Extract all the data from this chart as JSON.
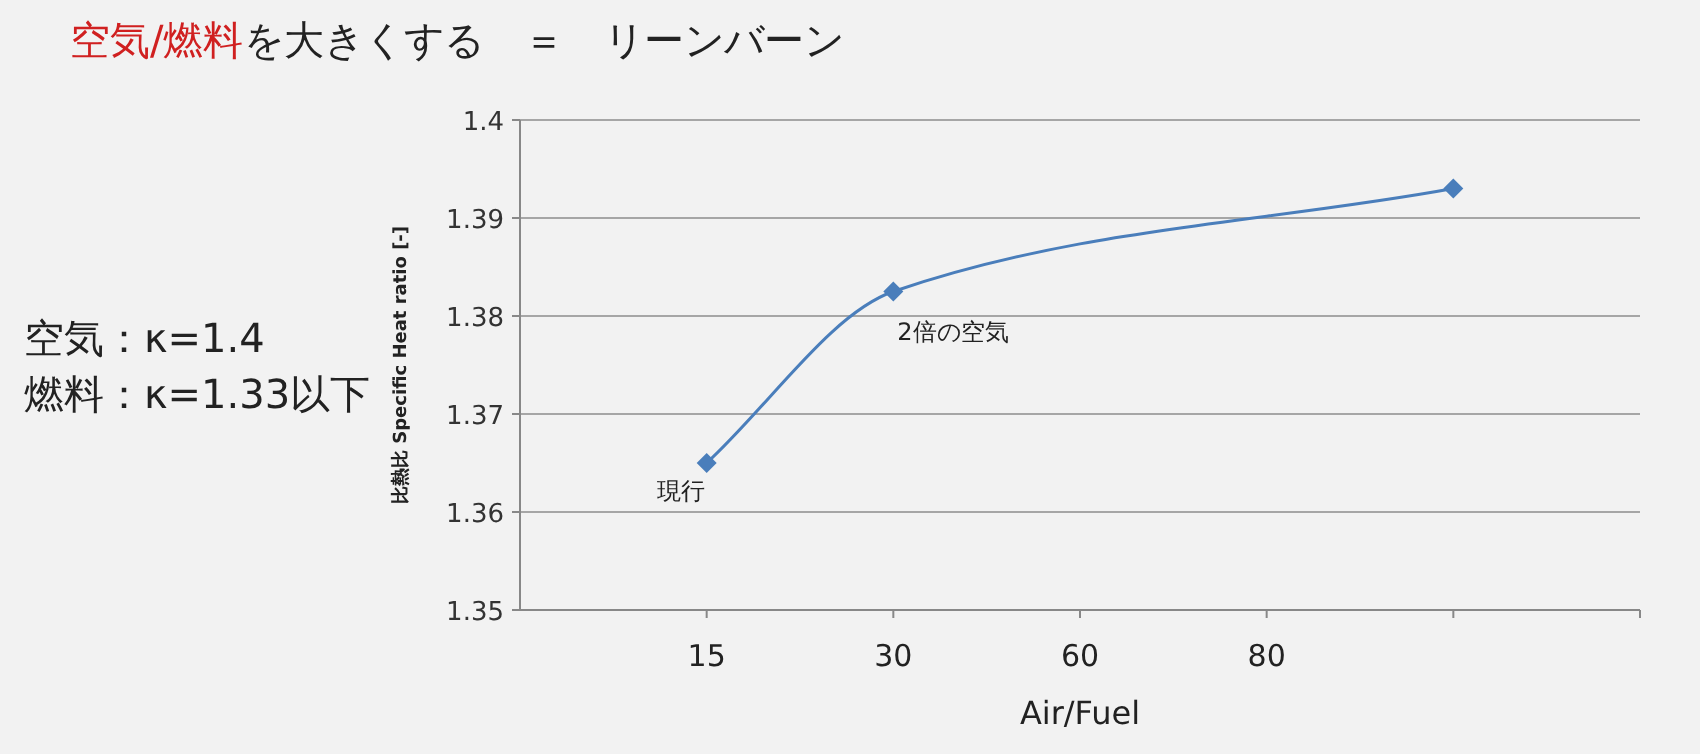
{
  "chart_data": {
    "type": "line",
    "title": "空気/燃料",
    "subtitle": "を大きくする　＝　リーンバーン",
    "xlabel": "Air/Fuel",
    "ylabel": "比熱比  Specific Heat ratio [-]",
    "categories": [
      "15",
      "30",
      "60",
      "80",
      null
    ],
    "series": [
      {
        "color": "#4a7ebb",
        "values": [
          1.365,
          1.3825,
          null,
          null,
          1.393
        ]
      }
    ],
    "ylim": [
      1.35,
      1.4
    ],
    "yticks": [
      1.35,
      1.36,
      1.37,
      1.38,
      1.39,
      1.4
    ],
    "grid": "y",
    "marker": "diamond",
    "line_style": "solid",
    "annotations": [
      {
        "text": "現行",
        "x": "15",
        "y": 1.365
      },
      {
        "text": "2倍の空気",
        "x": "30",
        "y": 1.3825
      },
      "空気：κ=1.4",
      "燃料：κ=1.33以下"
    ]
  }
}
